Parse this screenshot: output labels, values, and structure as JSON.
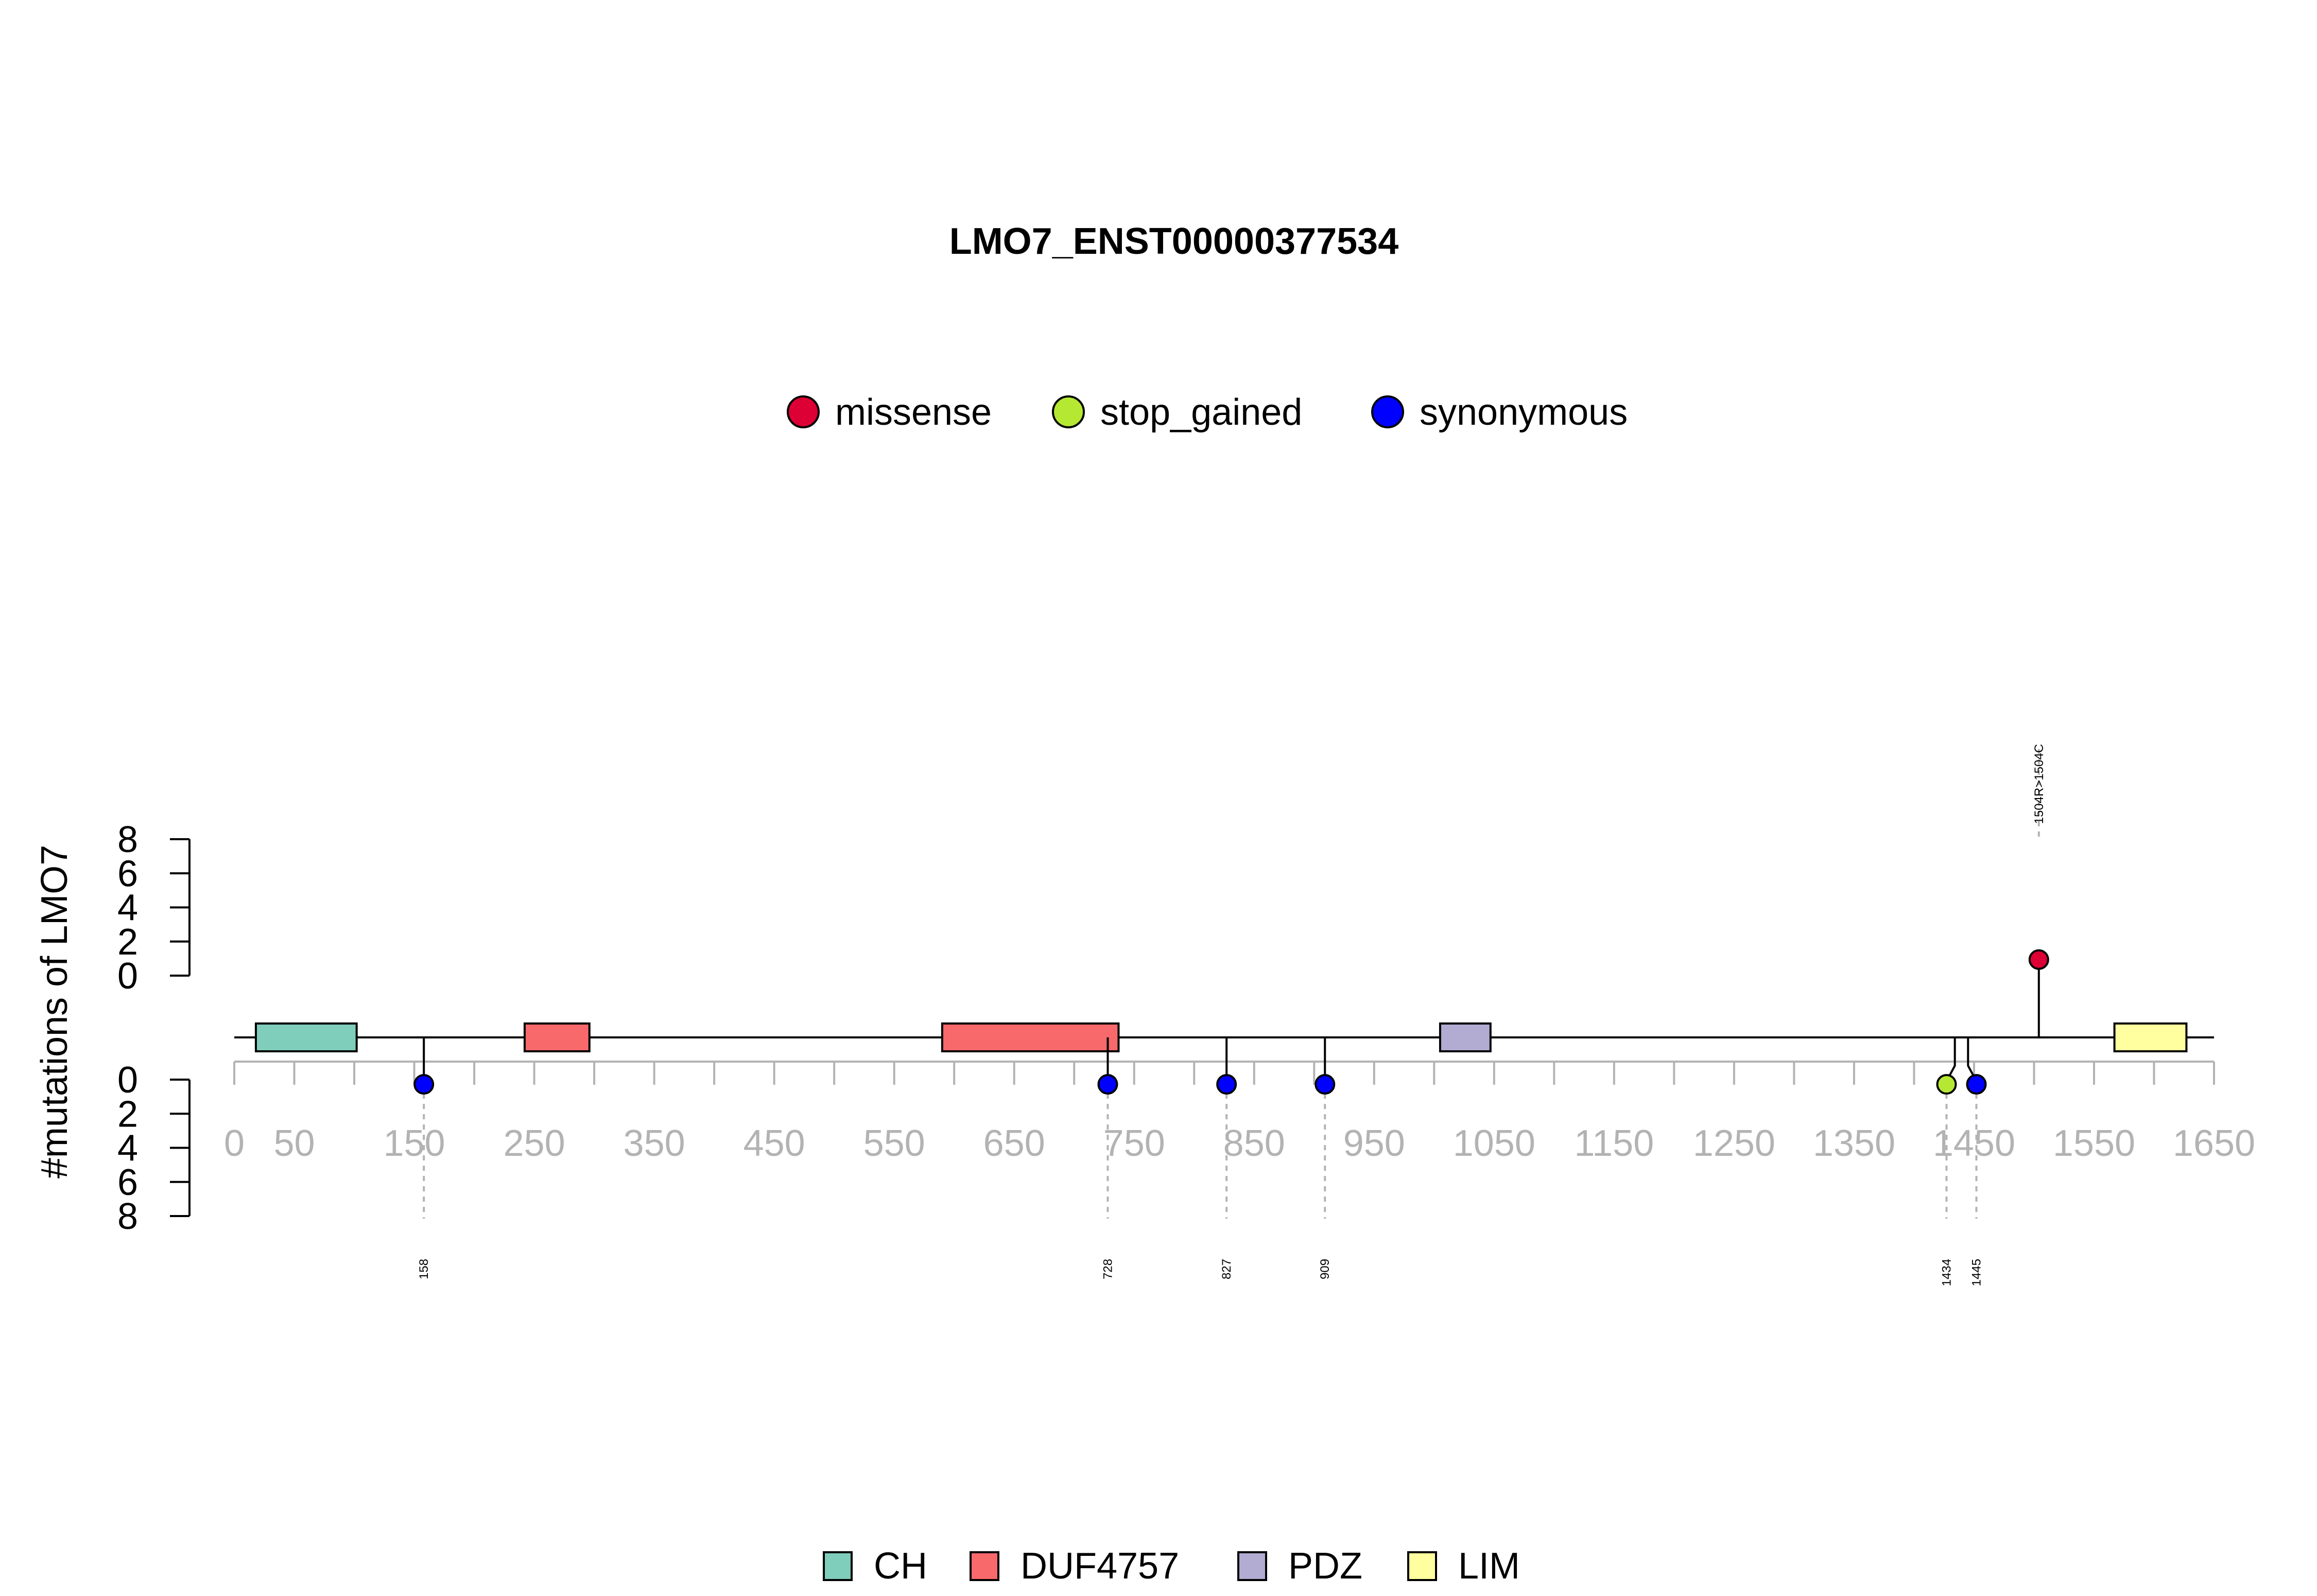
{
  "chart_data": {
    "type": "lollipop",
    "title": "LMO7_ENST00000377534",
    "ylabel": "#mutations of LMO7",
    "protein_length": 1650,
    "xlim": [
      0,
      1650
    ],
    "x_ticks": [
      0,
      50,
      150,
      250,
      350,
      450,
      550,
      650,
      750,
      850,
      950,
      1050,
      1150,
      1250,
      1350,
      1450,
      1550,
      1650
    ],
    "y_ticks_upper": [
      0,
      2,
      4,
      6,
      8
    ],
    "y_ticks_lower": [
      0,
      2,
      4,
      6,
      8
    ],
    "ylim": [
      0,
      8
    ],
    "mutation_legend": [
      {
        "name": "missense",
        "color": "#DC0034"
      },
      {
        "name": "stop_gained",
        "color": "#B5E833"
      },
      {
        "name": "synonymous",
        "color": "#0000FF"
      }
    ],
    "domain_legend": [
      {
        "name": "CH",
        "color": "#7FCDBB"
      },
      {
        "name": "DUF4757",
        "color": "#F8696B"
      },
      {
        "name": "PDZ",
        "color": "#B2ABD2"
      },
      {
        "name": "LIM",
        "color": "#FFFFA0"
      }
    ],
    "domains": [
      {
        "name": "CH",
        "start": 18,
        "end": 102
      },
      {
        "name": "DUF4757",
        "start": 242,
        "end": 296
      },
      {
        "name": "DUF4757",
        "start": 590,
        "end": 737
      },
      {
        "name": "PDZ",
        "start": 1005,
        "end": 1047
      },
      {
        "name": "LIM",
        "start": 1567,
        "end": 1627
      }
    ],
    "mutations": [
      {
        "position": 1504,
        "label": "1504R>1504C",
        "type": "missense",
        "count": 1,
        "side": "top"
      },
      {
        "position": 158,
        "label": "158",
        "type": "synonymous",
        "count": 1,
        "side": "bottom"
      },
      {
        "position": 728,
        "label": "728",
        "type": "synonymous",
        "count": 1,
        "side": "bottom"
      },
      {
        "position": 827,
        "label": "827",
        "type": "synonymous",
        "count": 1,
        "side": "bottom"
      },
      {
        "position": 909,
        "label": "909",
        "type": "synonymous",
        "count": 1,
        "side": "bottom"
      },
      {
        "position": 1434,
        "label": "1434",
        "type": "stop_gained",
        "count": 1,
        "side": "bottom"
      },
      {
        "position": 1445,
        "label": "1445",
        "type": "synonymous",
        "count": 1,
        "side": "bottom"
      }
    ]
  }
}
